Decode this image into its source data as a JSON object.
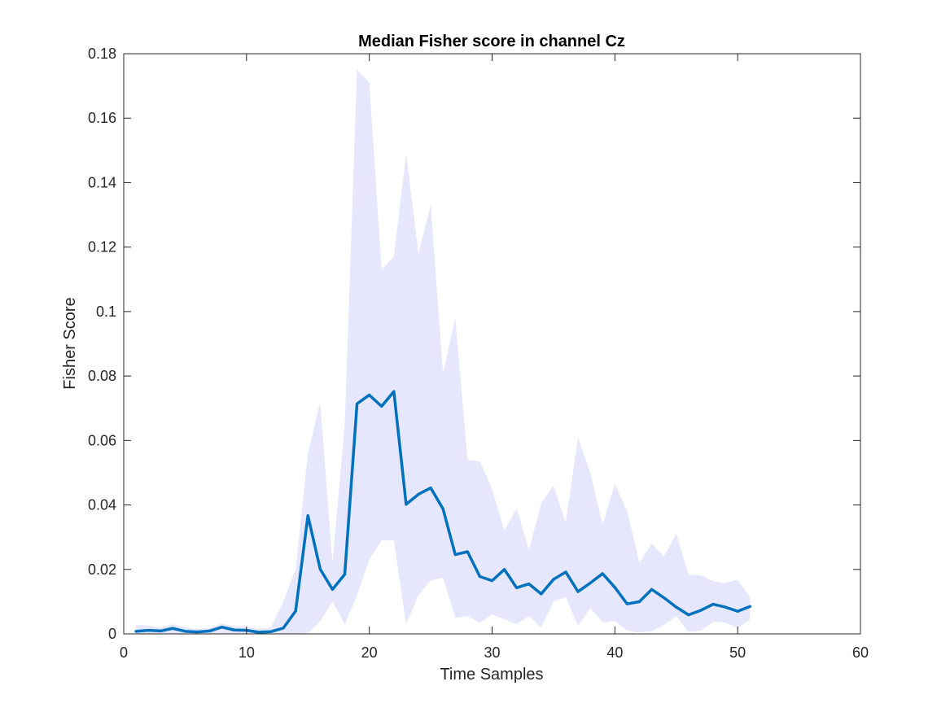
{
  "chart_data": {
    "type": "line",
    "title": "Median Fisher score in channel Cz",
    "xlabel": "Time Samples",
    "ylabel": "Fisher Score",
    "xlim": [
      0,
      60
    ],
    "ylim": [
      0,
      0.18
    ],
    "xticks": [
      0,
      10,
      20,
      30,
      40,
      50,
      60
    ],
    "xtick_labels": [
      "0",
      "10",
      "20",
      "30",
      "40",
      "50",
      "60"
    ],
    "yticks": [
      0,
      0.02,
      0.04,
      0.06,
      0.08,
      0.1,
      0.12,
      0.14,
      0.16,
      0.18
    ],
    "ytick_labels": [
      "0",
      "0.02",
      "0.04",
      "0.06",
      "0.08",
      "0.1",
      "0.12",
      "0.14",
      "0.16",
      "0.18"
    ],
    "grid": false,
    "line_color": "#0072BD",
    "band_color": "#E6E6FC",
    "series": [
      {
        "x": [
          1,
          2,
          3,
          4,
          5,
          6,
          7,
          8,
          9,
          10,
          11,
          12,
          13,
          14,
          15,
          16,
          17,
          18,
          19,
          20,
          21,
          22,
          23,
          24,
          25,
          26,
          27,
          28,
          29,
          30,
          31,
          32,
          33,
          34,
          35,
          36,
          37,
          38,
          39,
          40,
          41,
          42,
          43,
          44,
          45,
          46,
          47,
          48,
          49,
          50,
          51
        ],
        "y": [
          0.0008,
          0.0011,
          0.0009,
          0.0017,
          0.0008,
          0.0006,
          0.0009,
          0.0021,
          0.0012,
          0.0011,
          0.0005,
          0.0007,
          0.0018,
          0.0071,
          0.0367,
          0.0201,
          0.0138,
          0.0185,
          0.0714,
          0.0741,
          0.0706,
          0.0752,
          0.0402,
          0.0433,
          0.0453,
          0.0388,
          0.0246,
          0.0255,
          0.0178,
          0.0165,
          0.02,
          0.0143,
          0.0155,
          0.0124,
          0.0169,
          0.0192,
          0.0131,
          0.0158,
          0.0187,
          0.0144,
          0.0093,
          0.01,
          0.0138,
          0.0112,
          0.0083,
          0.0059,
          0.0073,
          0.0092,
          0.0083,
          0.007,
          0.0085
        ]
      }
    ],
    "band": {
      "x": [
        1,
        2,
        3,
        4,
        5,
        6,
        7,
        8,
        9,
        10,
        11,
        12,
        13,
        14,
        15,
        16,
        17,
        18,
        19,
        20,
        21,
        22,
        23,
        24,
        25,
        26,
        27,
        28,
        29,
        30,
        31,
        32,
        33,
        34,
        35,
        36,
        37,
        38,
        39,
        40,
        41,
        42,
        43,
        44,
        45,
        46,
        47,
        48,
        49,
        50,
        51
      ],
      "upper": [
        0.0028,
        0.0026,
        0.002,
        0.003,
        0.002,
        0.0015,
        0.0018,
        0.0032,
        0.0024,
        0.0022,
        0.0015,
        0.002,
        0.01,
        0.02,
        0.056,
        0.072,
        0.022,
        0.065,
        0.175,
        0.171,
        0.113,
        0.117,
        0.149,
        0.118,
        0.133,
        0.081,
        0.098,
        0.054,
        0.0535,
        0.045,
        0.032,
        0.039,
        0.026,
        0.0405,
        0.046,
        0.0345,
        0.061,
        0.05,
        0.034,
        0.0465,
        0.038,
        0.022,
        0.028,
        0.024,
        0.031,
        0.0183,
        0.0182,
        0.0163,
        0.0158,
        0.0168,
        0.0115
      ],
      "lower": [
        0.0001,
        0.0001,
        0.0001,
        0.0001,
        0.0001,
        0.0001,
        0.0001,
        0.0001,
        0.0001,
        0.0001,
        0.0001,
        0.0001,
        0.0001,
        0.0001,
        0.0002,
        0.004,
        0.01,
        0.003,
        0.012,
        0.023,
        0.029,
        0.029,
        0.003,
        0.012,
        0.0165,
        0.0175,
        0.005,
        0.0055,
        0.0035,
        0.006,
        0.0045,
        0.003,
        0.0055,
        0.002,
        0.01,
        0.0115,
        0.0025,
        0.008,
        0.0035,
        0.004,
        0.001,
        0.0004,
        0.0008,
        0.0028,
        0.0055,
        0.0006,
        0.001,
        0.0038,
        0.0035,
        0.0018,
        0.0045
      ]
    }
  }
}
